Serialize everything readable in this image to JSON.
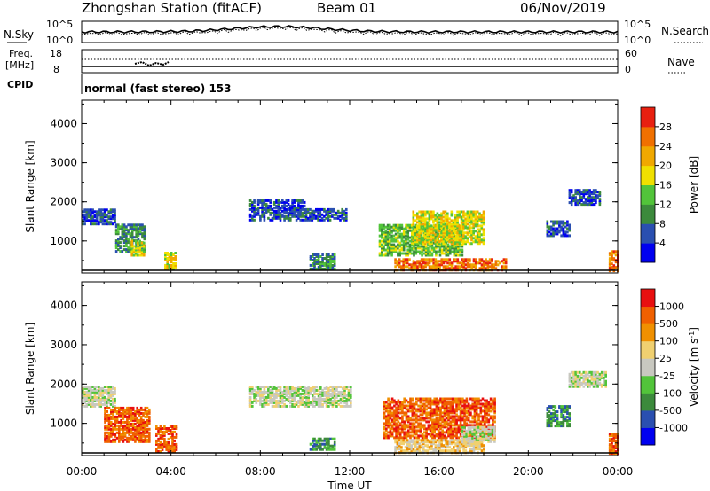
{
  "header": {
    "station": "Zhongshan Station (fitACF)",
    "beam": "Beam 01",
    "date": "06/Nov/2019"
  },
  "top_panels": {
    "nsky_label": "N.Sky",
    "nsky_ticks": [
      "10^5",
      "10^0"
    ],
    "nsearch_label": "N.Search",
    "nsearch_ticks": [
      "10^5",
      "10^0"
    ],
    "freq_label": "Freq.",
    "freq_unit": "[MHz]",
    "freq_ticks": [
      "18",
      "8"
    ],
    "nave_label": "Nave",
    "nave_ticks": [
      "60",
      "0"
    ],
    "cpid_label": "CPID",
    "cpid_text": "normal (fast stereo) 153"
  },
  "chart_data": [
    {
      "type": "heatmap",
      "name_shown": "Power",
      "ylabel": "Slant Range [km]",
      "xlabel": "Time UT",
      "x_ticks": [
        "00:00",
        "04:00",
        "08:00",
        "12:00",
        "16:00",
        "20:00",
        "00:00"
      ],
      "x_range_hours": [
        0,
        24
      ],
      "y_ticks": [
        1000,
        2000,
        3000,
        4000
      ],
      "ylim": [
        180,
        4600
      ],
      "colorbar": {
        "label": "Power [dB]",
        "ticks": [
          "4",
          "8",
          "12",
          "16",
          "20",
          "24",
          "28"
        ],
        "colors": [
          "#0000f0",
          "#2a4fb0",
          "#3c8a3c",
          "#52c43a",
          "#f0e000",
          "#f0a800",
          "#f07000",
          "#e82010"
        ]
      },
      "regions": [
        {
          "t": [
            0.0,
            1.5
          ],
          "r": [
            1400,
            1800
          ],
          "level": 1
        },
        {
          "t": [
            1.5,
            2.8
          ],
          "r": [
            700,
            1400
          ],
          "level": 2
        },
        {
          "t": [
            2.2,
            2.8
          ],
          "r": [
            600,
            1000
          ],
          "level": 4
        },
        {
          "t": [
            3.7,
            4.2
          ],
          "r": [
            250,
            700
          ],
          "level": 4
        },
        {
          "t": [
            7.5,
            10.0
          ],
          "r": [
            1500,
            2000
          ],
          "level": 1
        },
        {
          "t": [
            10.0,
            11.8
          ],
          "r": [
            1500,
            1800
          ],
          "level": 1
        },
        {
          "t": [
            10.2,
            11.3
          ],
          "r": [
            250,
            650
          ],
          "level": 2
        },
        {
          "t": [
            13.3,
            17.0
          ],
          "r": [
            600,
            1400
          ],
          "level": 3
        },
        {
          "t": [
            14.8,
            18.0
          ],
          "r": [
            900,
            1750
          ],
          "level": 4
        },
        {
          "t": [
            14.0,
            19.0
          ],
          "r": [
            220,
            500
          ],
          "level": 6
        },
        {
          "t": [
            20.8,
            21.8
          ],
          "r": [
            1100,
            1500
          ],
          "level": 1
        },
        {
          "t": [
            21.8,
            23.2
          ],
          "r": [
            1900,
            2300
          ],
          "level": 1
        },
        {
          "t": [
            23.6,
            24.0
          ],
          "r": [
            200,
            700
          ],
          "level": 6
        }
      ]
    },
    {
      "type": "heatmap",
      "name_shown": "Velocity",
      "ylabel": "Slant Range [km]",
      "xlabel": "Time UT",
      "x_ticks": [
        "00:00",
        "04:00",
        "08:00",
        "12:00",
        "16:00",
        "20:00",
        "00:00"
      ],
      "x_range_hours": [
        0,
        24
      ],
      "y_ticks": [
        1000,
        2000,
        3000,
        4000
      ],
      "ylim": [
        180,
        4600
      ],
      "colorbar": {
        "label": "Velocity [m s",
        "label_sup": "-1",
        "label_end": "]",
        "ticks": [
          "1000",
          "500",
          "100",
          "25",
          "-25",
          "-100",
          "-500",
          "-1000"
        ],
        "colors": [
          "#0000f0",
          "#2a4fb0",
          "#3c8a3c",
          "#52c43a",
          "#c8c8c0",
          "#f0d070",
          "#f09000",
          "#f06000",
          "#e81010"
        ]
      },
      "regions": [
        {
          "t": [
            0.0,
            1.5
          ],
          "r": [
            1400,
            1900
          ],
          "level": 4
        },
        {
          "t": [
            1.0,
            3.0
          ],
          "r": [
            500,
            1400
          ],
          "level": 7
        },
        {
          "t": [
            3.3,
            4.2
          ],
          "r": [
            250,
            900
          ],
          "level": 7
        },
        {
          "t": [
            7.5,
            12.0
          ],
          "r": [
            1400,
            1900
          ],
          "level": 4
        },
        {
          "t": [
            10.2,
            11.3
          ],
          "r": [
            300,
            600
          ],
          "level": 2
        },
        {
          "t": [
            13.5,
            18.5
          ],
          "r": [
            600,
            1600
          ],
          "level": 7
        },
        {
          "t": [
            14.0,
            18.0
          ],
          "r": [
            220,
            550
          ],
          "level": 5
        },
        {
          "t": [
            17.0,
            18.5
          ],
          "r": [
            500,
            900
          ],
          "level": 4
        },
        {
          "t": [
            20.8,
            21.8
          ],
          "r": [
            900,
            1400
          ],
          "level": 2
        },
        {
          "t": [
            21.8,
            23.5
          ],
          "r": [
            1900,
            2300
          ],
          "level": 4
        },
        {
          "t": [
            23.6,
            24.0
          ],
          "r": [
            200,
            700
          ],
          "level": 7
        }
      ]
    }
  ]
}
